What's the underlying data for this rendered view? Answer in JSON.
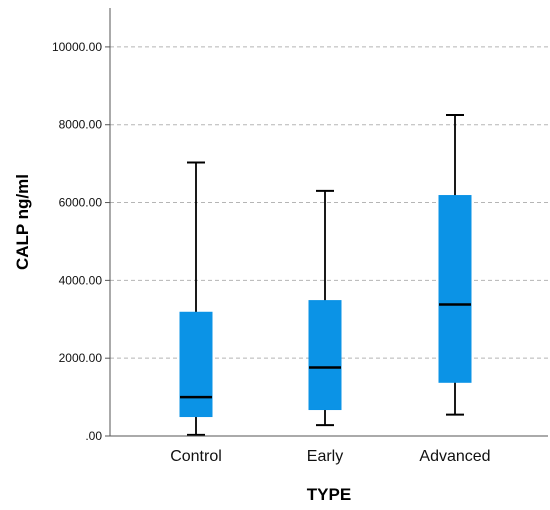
{
  "chart_data": {
    "type": "boxplot",
    "xlabel": "TYPE",
    "ylabel": "CALP ng/ml",
    "ylim": [
      0,
      11000
    ],
    "yticks": [
      0,
      2000,
      4000,
      6000,
      8000,
      10000
    ],
    "ytick_labels": [
      ".00",
      "2000.00",
      "4000.00",
      "6000.00",
      "8000.00",
      "10000.00"
    ],
    "grid": true,
    "grid_style": "dashed",
    "box_color": "#0b93e6",
    "line_color": "#000000",
    "categories": [
      "Control",
      "Early",
      "Advanced"
    ],
    "boxes": [
      {
        "category": "Control",
        "min": 30,
        "q1": 500,
        "median": 1000,
        "q3": 3180,
        "max": 7030
      },
      {
        "category": "Early",
        "min": 280,
        "q1": 680,
        "median": 1760,
        "q3": 3480,
        "max": 6300
      },
      {
        "category": "Advanced",
        "min": 550,
        "q1": 1380,
        "median": 3380,
        "q3": 6180,
        "max": 8250
      }
    ]
  }
}
